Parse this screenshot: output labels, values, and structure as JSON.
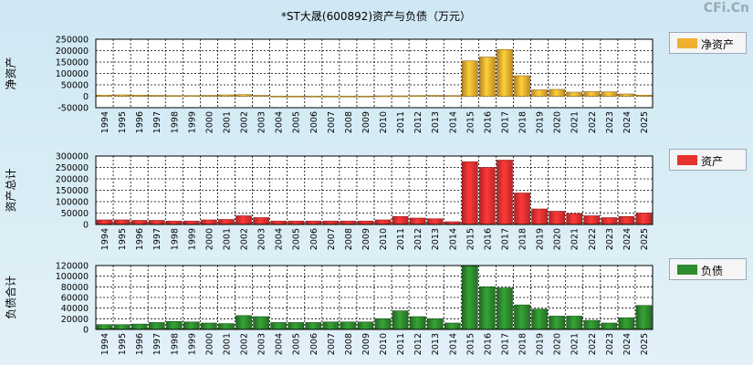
{
  "title": "*ST大晟(600892)资产与负债（万元）",
  "watermark": "CFi.Cn",
  "chart_data": [
    {
      "type": "bar",
      "ylabel": "净资产",
      "legend": "净资产",
      "color": "#f0b030",
      "ylim": [
        -50000,
        250000
      ],
      "yticks": [
        -50000,
        0,
        50000,
        100000,
        150000,
        200000,
        250000
      ],
      "categories": [
        "1994",
        "1995",
        "1996",
        "1997",
        "1998",
        "1999",
        "2000",
        "2001",
        "2002",
        "2003",
        "2004",
        "2005",
        "2006",
        "2007",
        "2008",
        "2009",
        "2010",
        "2011",
        "2012",
        "2013",
        "2014",
        "2015",
        "2016",
        "2017",
        "2018",
        "2019",
        "2020",
        "2021",
        "2022",
        "2023",
        "2024",
        "2025"
      ],
      "values": [
        5000,
        6000,
        5000,
        4000,
        3000,
        3000,
        4000,
        6000,
        7000,
        4000,
        1000,
        1000,
        1000,
        1000,
        1000,
        1000,
        2000,
        2000,
        3000,
        4000,
        3000,
        155000,
        172000,
        205000,
        90000,
        28000,
        30000,
        18000,
        20000,
        19000,
        10000,
        5000
      ]
    },
    {
      "type": "bar",
      "ylabel": "资产总计",
      "legend": "资产",
      "color": "#e83030",
      "ylim": [
        0,
        300000
      ],
      "yticks": [
        0,
        50000,
        100000,
        150000,
        200000,
        250000,
        300000
      ],
      "categories": [
        "1994",
        "1995",
        "1996",
        "1997",
        "1998",
        "1999",
        "2000",
        "2001",
        "2002",
        "2003",
        "2004",
        "2005",
        "2006",
        "2007",
        "2008",
        "2009",
        "2010",
        "2011",
        "2012",
        "2013",
        "2014",
        "2015",
        "2016",
        "2017",
        "2018",
        "2019",
        "2020",
        "2021",
        "2022",
        "2023",
        "2024",
        "2025"
      ],
      "values": [
        20000,
        20000,
        18000,
        18000,
        15000,
        15000,
        20000,
        22000,
        38000,
        30000,
        15000,
        15000,
        15000,
        15000,
        15000,
        15000,
        20000,
        35000,
        28000,
        25000,
        12000,
        275000,
        250000,
        282000,
        138000,
        68000,
        58000,
        48000,
        38000,
        30000,
        35000,
        50000
      ]
    },
    {
      "type": "bar",
      "ylabel": "负债合计",
      "legend": "负债",
      "color": "#2e8b2e",
      "ylim": [
        0,
        120000
      ],
      "yticks": [
        0,
        20000,
        40000,
        60000,
        80000,
        100000,
        120000
      ],
      "categories": [
        "1994",
        "1995",
        "1996",
        "1997",
        "1998",
        "1999",
        "2000",
        "2001",
        "2002",
        "2003",
        "2004",
        "2005",
        "2006",
        "2007",
        "2008",
        "2009",
        "2010",
        "2011",
        "2012",
        "2013",
        "2014",
        "2015",
        "2016",
        "2017",
        "2018",
        "2019",
        "2020",
        "2021",
        "2022",
        "2023",
        "2024",
        "2025"
      ],
      "values": [
        9000,
        9000,
        10000,
        13000,
        15000,
        14000,
        12000,
        11000,
        26000,
        24000,
        13000,
        13000,
        13000,
        14000,
        14000,
        14000,
        20000,
        35000,
        24000,
        20000,
        12000,
        120000,
        80000,
        78000,
        46000,
        38000,
        25000,
        25000,
        17000,
        12000,
        22000,
        45000
      ]
    }
  ]
}
